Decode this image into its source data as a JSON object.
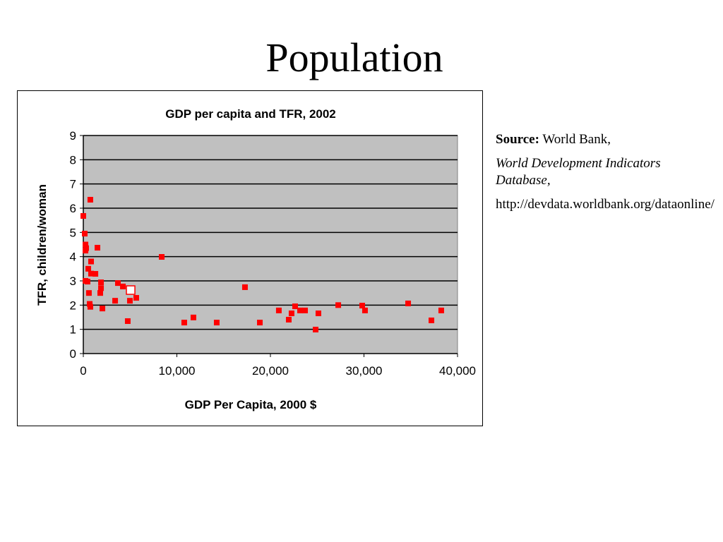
{
  "slide": {
    "title": "Population"
  },
  "source": {
    "label": "Source:",
    "org": "World Bank,",
    "database": "World Development Indicators Database,",
    "url": "http://devdata.worldbank.org/dataonline/"
  },
  "chart_data": {
    "type": "scatter",
    "title": "GDP per capita and TFR, 2002",
    "xlabel": "GDP Per Capita, 2000 $",
    "ylabel": "TFR, children/woman",
    "xlim": [
      0,
      40000
    ],
    "ylim": [
      0,
      9
    ],
    "xticks": [
      "0",
      "10,000",
      "20,000",
      "30,000",
      "40,000"
    ],
    "yticks": [
      "0",
      "1",
      "2",
      "3",
      "4",
      "5",
      "6",
      "7",
      "8",
      "9"
    ],
    "grid": "horizontal",
    "colors": {
      "point": "#ff0000",
      "plot_bg": "#c0c0c0"
    },
    "highlight": {
      "x": 5060,
      "y": 2.62
    },
    "points": [
      [
        750,
        6.35
      ],
      [
        0,
        5.68
      ],
      [
        150,
        4.95
      ],
      [
        230,
        4.5
      ],
      [
        300,
        4.35
      ],
      [
        230,
        4.25
      ],
      [
        1510,
        4.37
      ],
      [
        530,
        3.5
      ],
      [
        830,
        3.8
      ],
      [
        830,
        3.3
      ],
      [
        1290,
        3.29
      ],
      [
        230,
        3.0
      ],
      [
        450,
        2.97
      ],
      [
        1890,
        2.94
      ],
      [
        1890,
        2.7
      ],
      [
        1810,
        2.5
      ],
      [
        600,
        2.5
      ],
      [
        680,
        2.05
      ],
      [
        750,
        1.93
      ],
      [
        2040,
        1.86
      ],
      [
        3700,
        2.91
      ],
      [
        4230,
        2.77
      ],
      [
        3400,
        2.18
      ],
      [
        4980,
        2.18
      ],
      [
        5660,
        2.3
      ],
      [
        4750,
        1.34
      ],
      [
        8380,
        3.99
      ],
      [
        10790,
        1.28
      ],
      [
        11770,
        1.49
      ],
      [
        14260,
        1.28
      ],
      [
        17280,
        2.74
      ],
      [
        18870,
        1.28
      ],
      [
        20900,
        1.78
      ],
      [
        21960,
        1.4
      ],
      [
        22260,
        1.66
      ],
      [
        22640,
        1.95
      ],
      [
        23170,
        1.78
      ],
      [
        23700,
        1.78
      ],
      [
        25130,
        1.66
      ],
      [
        24830,
        0.99
      ],
      [
        27250,
        2.0
      ],
      [
        29810,
        1.98
      ],
      [
        30110,
        1.78
      ],
      [
        34720,
        2.07
      ],
      [
        37210,
        1.37
      ],
      [
        38260,
        1.78
      ]
    ]
  }
}
